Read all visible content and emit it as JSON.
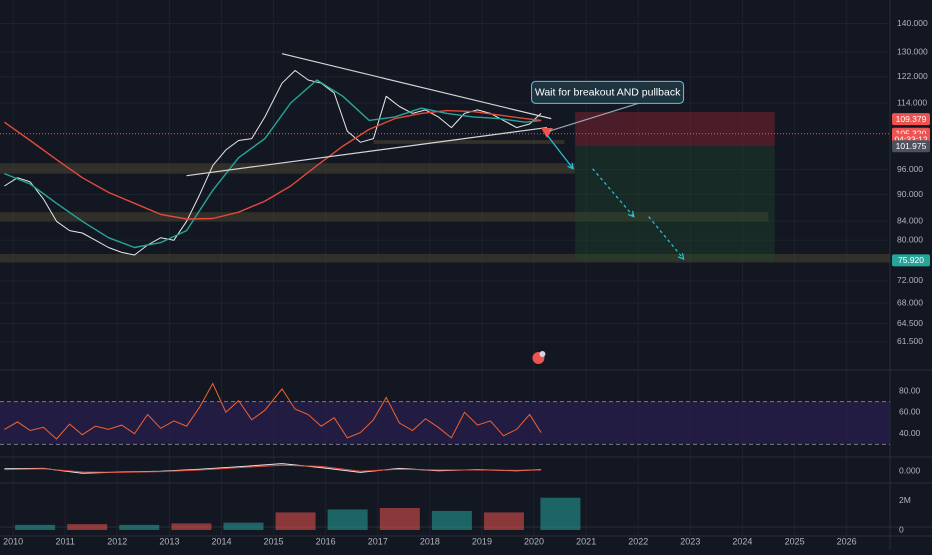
{
  "chart_data": [
    {
      "type": "line",
      "title": "",
      "panel": "price",
      "x_axis": {
        "type": "date",
        "range": [
          "2009-10-01",
          "2026-11-01"
        ],
        "tick_labels": [
          "2010",
          "2011",
          "2012",
          "2013",
          "2014",
          "2015",
          "2016",
          "2017",
          "2018",
          "2019",
          "2020",
          "2021",
          "2022",
          "2023",
          "2024",
          "2025",
          "2026"
        ]
      },
      "y_axis": {
        "scale": "log",
        "range": [
          57.5,
          148.0
        ],
        "tick_values": [
          140.0,
          130.0,
          122.0,
          114.0,
          96.0,
          90.0,
          84.0,
          80.0,
          72.0,
          68.0,
          64.5,
          61.5
        ],
        "tick_labels": [
          "140.000",
          "130.000",
          "122.000",
          "114.000",
          "96.000",
          "90.000",
          "84.000",
          "80.000",
          "72.000",
          "68.000",
          "64.500",
          "61.500"
        ]
      },
      "grid": true,
      "series": [
        {
          "name": "",
          "style": "price",
          "color": "#e8e8e8",
          "x": [
            "2009-11-01",
            "2010-02-01",
            "2010-05-01",
            "2010-08-01",
            "2010-11-01",
            "2011-02-01",
            "2011-05-01",
            "2011-08-01",
            "2011-11-01",
            "2012-02-01",
            "2012-05-01",
            "2012-08-01",
            "2012-11-01",
            "2013-02-01",
            "2013-05-01",
            "2013-08-01",
            "2013-11-01",
            "2014-02-01",
            "2014-05-01",
            "2014-08-01",
            "2014-11-01",
            "2015-03-01",
            "2015-06-01",
            "2015-09-01",
            "2015-12-01",
            "2016-03-01",
            "2016-06-01",
            "2016-09-01",
            "2016-12-01",
            "2017-03-01",
            "2017-06-01",
            "2017-09-01",
            "2017-12-01",
            "2018-03-01",
            "2018-06-01",
            "2018-09-01",
            "2018-12-01",
            "2019-03-01",
            "2019-06-01",
            "2019-09-01",
            "2019-12-01",
            "2020-02-20"
          ],
          "y": [
            92.0,
            94.0,
            93.0,
            89.0,
            84.0,
            82.0,
            81.5,
            80.0,
            78.5,
            77.5,
            77.0,
            79.0,
            80.5,
            80.0,
            84.0,
            90.0,
            97.0,
            101.0,
            103.5,
            104.0,
            110.0,
            120.0,
            124.0,
            121.0,
            120.0,
            117.0,
            106.0,
            103.0,
            104.0,
            116.0,
            113.0,
            111.0,
            112.0,
            110.0,
            107.0,
            111.0,
            112.0,
            111.0,
            109.0,
            107.0,
            108.0,
            111.0
          ]
        },
        {
          "name": "",
          "style": "moving-average-fast",
          "color": "#26a69a",
          "x": [
            "2009-11-01",
            "2010-05-01",
            "2010-11-01",
            "2011-05-01",
            "2011-11-01",
            "2012-05-01",
            "2012-11-01",
            "2013-05-01",
            "2013-11-01",
            "2014-05-01",
            "2014-11-01",
            "2015-05-01",
            "2015-11-01",
            "2016-05-01",
            "2016-11-01",
            "2017-05-01",
            "2017-11-01",
            "2018-05-01",
            "2018-11-01",
            "2019-05-01",
            "2019-11-01",
            "2020-02-20"
          ],
          "y": [
            95.0,
            92.5,
            88.0,
            84.0,
            80.5,
            78.5,
            79.5,
            82.0,
            91.0,
            99.0,
            104.0,
            114.0,
            121.0,
            116.0,
            109.0,
            110.0,
            112.5,
            111.0,
            110.0,
            109.5,
            108.5,
            109.0
          ]
        },
        {
          "name": "",
          "style": "moving-average-slow",
          "color": "#e24a3b",
          "x": [
            "2009-11-01",
            "2010-05-01",
            "2010-11-01",
            "2011-05-01",
            "2011-11-01",
            "2012-05-01",
            "2012-11-01",
            "2013-05-01",
            "2013-11-01",
            "2014-05-01",
            "2014-11-01",
            "2015-05-01",
            "2015-11-01",
            "2016-05-01",
            "2016-11-01",
            "2017-05-01",
            "2017-11-01",
            "2018-05-01",
            "2018-11-01",
            "2019-05-01",
            "2019-11-01",
            "2020-02-20"
          ],
          "y": [
            108.5,
            103.5,
            98.5,
            94.0,
            90.5,
            88.0,
            85.5,
            84.5,
            84.6,
            86.0,
            88.5,
            92.0,
            97.0,
            102.0,
            106.5,
            109.5,
            111.0,
            111.8,
            111.5,
            110.5,
            109.5,
            109.0
          ]
        }
      ],
      "price_labels": [
        {
          "text": "109.379",
          "value": 109.379,
          "color": "#ef5350"
        },
        {
          "text": "105.320",
          "value": 105.32,
          "color": "#ef5350"
        },
        {
          "text": "04:33:12",
          "value": 103.65,
          "color": "#ef5350"
        },
        {
          "text": "101.975",
          "value": 101.975,
          "color": "#4c525e"
        },
        {
          "text": "75.920",
          "value": 75.92,
          "color": "#26a69a"
        }
      ],
      "annotations": [
        {
          "type": "callout",
          "text": "Wait for breakout AND pullback"
        }
      ]
    },
    {
      "type": "line",
      "panel": "oscillator",
      "y_axis": {
        "range": [
          20,
          95
        ],
        "tick_values": [
          80.0,
          60.0,
          40.0
        ],
        "tick_labels": [
          "80.00",
          "60.00",
          "40.00"
        ],
        "bands": [
          30,
          70
        ]
      },
      "series": [
        {
          "name": "",
          "color": "#f0622e",
          "x": [
            "2009-11-01",
            "2010-02-01",
            "2010-05-01",
            "2010-08-01",
            "2010-11-01",
            "2011-02-01",
            "2011-05-01",
            "2011-08-01",
            "2011-11-01",
            "2012-02-01",
            "2012-05-01",
            "2012-08-01",
            "2012-11-01",
            "2013-02-01",
            "2013-05-01",
            "2013-08-01",
            "2013-11-01",
            "2014-02-01",
            "2014-05-01",
            "2014-08-01",
            "2014-11-01",
            "2015-03-01",
            "2015-06-01",
            "2015-09-01",
            "2015-12-01",
            "2016-03-01",
            "2016-06-01",
            "2016-09-01",
            "2016-12-01",
            "2017-03-01",
            "2017-06-01",
            "2017-09-01",
            "2017-12-01",
            "2018-03-01",
            "2018-06-01",
            "2018-09-01",
            "2018-12-01",
            "2019-03-01",
            "2019-06-01",
            "2019-09-01",
            "2019-12-01",
            "2020-02-20"
          ],
          "y": [
            44,
            51,
            43,
            46,
            35,
            49,
            39,
            47,
            44,
            48,
            40,
            58,
            45,
            52,
            47,
            65,
            87,
            60,
            71,
            53,
            62,
            82,
            63,
            58,
            47,
            55,
            36,
            41,
            53,
            74,
            50,
            43,
            54,
            46,
            36,
            60,
            48,
            52,
            38,
            44,
            58,
            41
          ]
        }
      ]
    },
    {
      "type": "line",
      "panel": "macd",
      "y_axis": {
        "range": [
          -2.5,
          2.5
        ],
        "tick_values": [
          0
        ],
        "tick_labels": [
          "0.000"
        ]
      },
      "series": [
        {
          "name": "",
          "color": "#e8e8e8",
          "x": [
            "2009-11-01",
            "2010-08-01",
            "2011-05-01",
            "2012-02-01",
            "2012-11-01",
            "2013-08-01",
            "2014-05-01",
            "2015-03-01",
            "2015-12-01",
            "2016-09-01",
            "2017-06-01",
            "2018-03-01",
            "2018-12-01",
            "2019-09-01",
            "2020-02-20"
          ],
          "y": [
            0.3,
            0.4,
            -0.8,
            -0.5,
            -0.3,
            0.2,
            0.8,
            1.6,
            0.6,
            -0.6,
            0.4,
            -0.2,
            0.1,
            -0.2,
            0.1
          ]
        },
        {
          "name": "",
          "color": "#e24a3b",
          "x": [
            "2009-11-01",
            "2010-08-01",
            "2011-05-01",
            "2012-02-01",
            "2012-11-01",
            "2013-08-01",
            "2014-05-01",
            "2015-03-01",
            "2015-12-01",
            "2016-09-01",
            "2017-06-01",
            "2018-03-01",
            "2018-12-01",
            "2019-09-01",
            "2020-02-20"
          ],
          "y": [
            0.1,
            0.3,
            -0.5,
            -0.6,
            -0.4,
            0.0,
            0.6,
            1.2,
            0.9,
            -0.3,
            0.2,
            0.0,
            0.0,
            -0.1,
            0.0
          ]
        }
      ]
    },
    {
      "type": "bar",
      "panel": "volume",
      "y_axis": {
        "range": [
          0,
          3
        ],
        "tick_values": [
          2,
          0
        ],
        "tick_labels": [
          "2M",
          "0"
        ]
      },
      "series": [
        {
          "name": "",
          "x": [
            "2010",
            "2011",
            "2012",
            "2013",
            "2014",
            "2015",
            "2016",
            "2017",
            "2018",
            "2019",
            "2020-02"
          ],
          "values": [
            0.35,
            0.4,
            0.35,
            0.45,
            0.5,
            1.2,
            1.4,
            1.5,
            1.3,
            1.2,
            2.2
          ]
        }
      ]
    }
  ],
  "colors": {
    "background": "#131722",
    "grid": "#1e222d",
    "text": "#b2b5be",
    "up": "#26a69a",
    "down": "#ef5350",
    "oscillator_band": "#2a1f4d",
    "zone": "#4a4430"
  }
}
